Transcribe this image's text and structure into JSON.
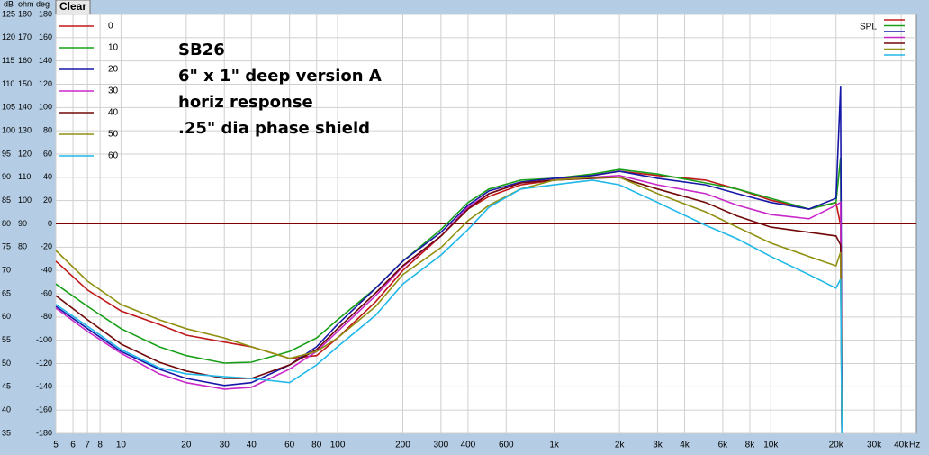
{
  "button": "Clear",
  "chart_data": {
    "type": "line",
    "annotation": [
      "SB26",
      "6\" x 1\" deep version A",
      "horiz response",
      ".25\" dia phase shield"
    ],
    "axis_units": [
      "dB",
      "ohm",
      "deg"
    ],
    "x_unit": "Hz",
    "spl_label": "SPL",
    "log_x": true,
    "grid": true,
    "reference_line": {
      "value": 80,
      "color": "#800000"
    },
    "xlim": [
      5,
      47000
    ],
    "xticks": [
      5,
      6,
      7,
      8,
      10,
      20,
      30,
      40,
      60,
      80,
      100,
      200,
      300,
      400,
      600,
      {
        "value": 1000,
        "label": "1k"
      },
      {
        "value": 2000,
        "label": "2k"
      },
      {
        "value": 3000,
        "label": "3k"
      },
      {
        "value": 4000,
        "label": "4k"
      },
      {
        "value": 6000,
        "label": "6k"
      },
      {
        "value": 8000,
        "label": "8k"
      },
      {
        "value": 10000,
        "label": "10k"
      },
      {
        "value": 20000,
        "label": "20k"
      },
      {
        "value": 30000,
        "label": "30k"
      },
      {
        "value": 40000,
        "label": "40k"
      }
    ],
    "ylim": [
      35,
      125
    ],
    "yticks": [
      35,
      40,
      45,
      50,
      55,
      60,
      65,
      70,
      75,
      80,
      85,
      90,
      95,
      100,
      105,
      110,
      115,
      120,
      125
    ],
    "y2lim": [
      0,
      180
    ],
    "y2ticks": [
      80,
      90,
      100,
      110,
      120,
      130,
      140,
      150,
      160,
      170,
      180
    ],
    "y3lim": [
      -180,
      180
    ],
    "y3ticks": [
      -180,
      -160,
      -140,
      -120,
      -100,
      -80,
      -60,
      -40,
      -20,
      0,
      20,
      40,
      60,
      80,
      100,
      120,
      140,
      160,
      180
    ],
    "x": [
      5,
      7,
      10,
      15,
      20,
      30,
      40,
      60,
      80,
      100,
      150,
      200,
      300,
      400,
      500,
      700,
      1000,
      1500,
      2000,
      3000,
      5000,
      7000,
      10000,
      15000,
      20000,
      21000,
      21300
    ],
    "series": [
      {
        "name": "0",
        "color": "#c01818",
        "values": [
          72.0,
          65.8,
          61.3,
          58.4,
          56.1,
          54.6,
          53.6,
          51.1,
          51.7,
          55.5,
          63.3,
          70.0,
          77.4,
          83.2,
          85.9,
          88.4,
          89.4,
          90.4,
          91.3,
          90.4,
          89.4,
          87.5,
          85.1,
          83.2,
          84.6,
          79.7,
          35
        ]
      },
      {
        "name": "10",
        "color": "#18a018",
        "values": [
          67.1,
          62.3,
          57.5,
          53.6,
          51.7,
          50.1,
          50.3,
          52.6,
          55.5,
          59.4,
          66.2,
          72.0,
          78.8,
          84.6,
          87.5,
          89.4,
          89.8,
          90.7,
          91.7,
          90.7,
          88.8,
          87.5,
          85.5,
          83.2,
          84.6,
          94.2,
          35
        ]
      },
      {
        "name": "20",
        "color": "#1818a8",
        "values": [
          62.3,
          57.5,
          52.6,
          48.8,
          46.8,
          45.3,
          45.9,
          49.7,
          53.6,
          58.4,
          66.2,
          72.0,
          78.2,
          84.0,
          87.1,
          89.0,
          89.8,
          90.4,
          91.3,
          89.8,
          88.4,
          86.5,
          84.6,
          83.2,
          85.5,
          109.5,
          35
        ]
      },
      {
        "name": "30",
        "color": "#c828c8",
        "values": [
          61.9,
          56.9,
          52.2,
          47.8,
          45.9,
          44.5,
          44.9,
          48.8,
          52.6,
          56.9,
          64.6,
          70.8,
          77.4,
          83.6,
          86.5,
          88.8,
          89.4,
          90.0,
          90.4,
          88.4,
          86.5,
          84.0,
          82.0,
          81.1,
          84.0,
          84.6,
          35
        ]
      },
      {
        "name": "40",
        "color": "#700808",
        "values": [
          64.6,
          59.4,
          54.2,
          50.3,
          48.4,
          46.8,
          46.8,
          49.7,
          53.0,
          57.5,
          65.2,
          71.0,
          77.4,
          83.2,
          86.5,
          88.8,
          89.4,
          89.8,
          90.0,
          87.5,
          84.6,
          81.7,
          79.3,
          78.2,
          77.4,
          75.5,
          35
        ]
      },
      {
        "name": "50",
        "color": "#909010",
        "values": [
          74.3,
          67.7,
          62.7,
          59.4,
          57.5,
          55.5,
          53.6,
          51.1,
          52.6,
          55.5,
          62.3,
          69.1,
          74.9,
          80.7,
          84.0,
          87.5,
          89.4,
          90.0,
          90.0,
          86.5,
          82.6,
          79.3,
          75.9,
          73.0,
          71.0,
          73.9,
          35
        ]
      },
      {
        "name": "60",
        "color": "#20b8e8",
        "values": [
          62.7,
          58.0,
          53.0,
          49.1,
          47.8,
          47.2,
          46.8,
          45.9,
          49.7,
          53.6,
          60.4,
          67.1,
          73.3,
          78.8,
          83.6,
          87.5,
          88.4,
          89.4,
          88.4,
          84.6,
          79.7,
          76.8,
          73.0,
          69.1,
          66.2,
          68.1,
          35
        ]
      }
    ]
  }
}
